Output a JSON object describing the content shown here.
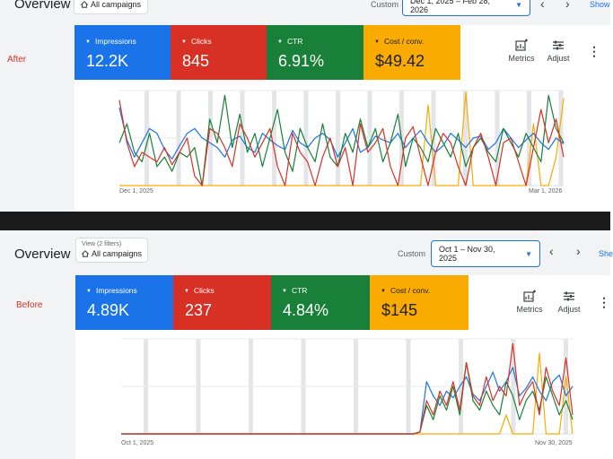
{
  "colors": {
    "impressions": "#1a73e8",
    "clicks": "#d93025",
    "ctr": "#188038",
    "cost": "#f9ab00",
    "weekend_band": "#dadce0",
    "accent": "#1a73e8",
    "label_red": "#d93025"
  },
  "after": {
    "side_label": "After",
    "title": "Overview",
    "filter_sub": "",
    "filter_chip": "All campaigns",
    "custom_label": "Custom",
    "date_range": "Dec 1, 2025 – Feb 28, 2026",
    "show_link": "Show",
    "metrics": [
      {
        "name": "Impressions",
        "value": "12.2K"
      },
      {
        "name": "Clicks",
        "value": "845"
      },
      {
        "name": "CTR",
        "value": "6.91%"
      },
      {
        "name": "Cost / conv.",
        "value": "$49.42"
      }
    ],
    "tools": {
      "metrics": "Metrics",
      "adjust": "Adjust"
    },
    "x_start": "Dec 1, 2025",
    "x_end": "Mar 1, 2026"
  },
  "before": {
    "side_label": "Before",
    "title": "Overview",
    "filter_sub": "View (2 filters)",
    "filter_chip": "All campaigns",
    "custom_label": "Custom",
    "date_range": "Oct 1 – Nov 30, 2025",
    "show_link": "She",
    "metrics": [
      {
        "name": "Impressions",
        "value": "4.89K"
      },
      {
        "name": "Clicks",
        "value": "237"
      },
      {
        "name": "CTR",
        "value": "4.84%"
      },
      {
        "name": "Cost / conv.",
        "value": "$145"
      }
    ],
    "tools": {
      "metrics": "Metrics",
      "adjust": "Adjust"
    },
    "x_start": "Oct 1, 2025",
    "x_end": "Nov 30, 2025"
  },
  "chart_data": [
    {
      "type": "line",
      "period": "after",
      "x_range": [
        "Dec 1, 2025",
        "Mar 1, 2026"
      ],
      "ylim": [
        0,
        100
      ],
      "grid": true,
      "series": [
        {
          "name": "Impressions",
          "values": [
            82,
            48,
            30,
            45,
            60,
            55,
            38,
            28,
            42,
            55,
            60,
            50,
            45,
            40,
            30,
            48,
            52,
            40,
            35,
            55,
            48,
            42,
            38,
            58,
            45,
            40,
            50,
            55,
            48,
            30,
            45,
            60,
            35,
            40,
            52,
            48,
            45,
            55,
            40,
            50,
            58,
            45,
            35,
            42,
            55,
            48,
            40,
            50,
            52,
            38,
            45,
            60,
            50,
            40,
            48,
            55,
            45,
            38,
            50,
            44
          ]
        },
        {
          "name": "Clicks",
          "values": [
            90,
            45,
            20,
            35,
            30,
            25,
            40,
            22,
            35,
            50,
            10,
            0,
            60,
            55,
            40,
            20,
            65,
            50,
            30,
            45,
            60,
            20,
            0,
            55,
            35,
            25,
            0,
            30,
            50,
            20,
            40,
            0,
            65,
            35,
            45,
            60,
            20,
            0,
            50,
            62,
            30,
            0,
            35,
            55,
            45,
            20,
            0,
            40,
            55,
            30,
            0,
            45,
            50,
            25,
            0,
            40,
            80,
            45,
            70,
            30
          ]
        },
        {
          "name": "CTR",
          "values": [
            45,
            65,
            35,
            25,
            55,
            20,
            30,
            15,
            35,
            30,
            40,
            0,
            70,
            45,
            95,
            40,
            75,
            35,
            55,
            20,
            50,
            80,
            35,
            15,
            60,
            40,
            25,
            65,
            30,
            20,
            55,
            35,
            70,
            40,
            60,
            25,
            45,
            75,
            20,
            50,
            40,
            25,
            60,
            45,
            30,
            55,
            20,
            40,
            50,
            35,
            25,
            60,
            45,
            30,
            55,
            40,
            25,
            95,
            60,
            45
          ]
        },
        {
          "name": "Cost / conv.",
          "values": [
            0,
            0,
            0,
            0,
            0,
            0,
            0,
            0,
            0,
            0,
            0,
            0,
            0,
            0,
            0,
            0,
            0,
            0,
            0,
            0,
            0,
            0,
            0,
            0,
            0,
            0,
            0,
            0,
            0,
            0,
            0,
            0,
            0,
            0,
            0,
            0,
            0,
            0,
            0,
            0,
            0,
            85,
            0,
            0,
            0,
            0,
            98,
            0,
            0,
            0,
            0,
            0,
            0,
            0,
            0,
            65,
            0,
            0,
            30,
            92
          ]
        }
      ]
    },
    {
      "type": "line",
      "period": "before",
      "x_range": [
        "Oct 1, 2025",
        "Nov 30, 2025"
      ],
      "ylim": [
        0,
        100
      ],
      "grid": true,
      "series": [
        {
          "name": "Impressions",
          "values": [
            0,
            0,
            0,
            0,
            0,
            0,
            0,
            0,
            0,
            0,
            0,
            0,
            0,
            0,
            0,
            0,
            0,
            0,
            0,
            0,
            0,
            0,
            0,
            0,
            0,
            0,
            0,
            0,
            0,
            0,
            0,
            0,
            0,
            0,
            0,
            0,
            0,
            0,
            0,
            0,
            0,
            0,
            0,
            0,
            0,
            2,
            55,
            40,
            30,
            45,
            38,
            50,
            60,
            42,
            35,
            50,
            65,
            45,
            55,
            70,
            40,
            48,
            60,
            45,
            35,
            55,
            62,
            40,
            50
          ]
        },
        {
          "name": "Clicks",
          "values": [
            0,
            0,
            0,
            0,
            0,
            0,
            0,
            0,
            0,
            0,
            0,
            0,
            0,
            0,
            0,
            0,
            0,
            0,
            0,
            0,
            0,
            0,
            0,
            0,
            0,
            0,
            0,
            0,
            0,
            0,
            0,
            0,
            0,
            0,
            0,
            0,
            0,
            0,
            0,
            0,
            0,
            0,
            0,
            0,
            0,
            2,
            35,
            20,
            45,
            30,
            55,
            25,
            75,
            40,
            30,
            60,
            35,
            50,
            40,
            95,
            30,
            45,
            55,
            20,
            70,
            45,
            30,
            80,
            20
          ]
        },
        {
          "name": "CTR",
          "values": [
            0,
            0,
            0,
            0,
            0,
            0,
            0,
            0,
            0,
            0,
            0,
            0,
            0,
            0,
            0,
            0,
            0,
            0,
            0,
            0,
            0,
            0,
            0,
            0,
            0,
            0,
            0,
            0,
            0,
            0,
            0,
            0,
            0,
            0,
            0,
            0,
            0,
            0,
            0,
            0,
            0,
            0,
            0,
            0,
            0,
            2,
            30,
            15,
            40,
            25,
            50,
            20,
            75,
            35,
            25,
            45,
            30,
            20,
            55,
            40,
            15,
            35,
            45,
            25,
            60,
            40,
            20,
            35,
            15
          ]
        },
        {
          "name": "Cost / conv.",
          "values": [
            0,
            0,
            0,
            0,
            0,
            0,
            0,
            0,
            0,
            0,
            0,
            0,
            0,
            0,
            0,
            0,
            0,
            0,
            0,
            0,
            0,
            0,
            0,
            0,
            0,
            0,
            0,
            0,
            0,
            0,
            0,
            0,
            0,
            0,
            0,
            0,
            0,
            0,
            0,
            0,
            0,
            0,
            0,
            0,
            0,
            0,
            0,
            0,
            0,
            0,
            0,
            0,
            0,
            0,
            0,
            0,
            0,
            0,
            20,
            0,
            0,
            0,
            0,
            85,
            0,
            0,
            0,
            60,
            0
          ]
        }
      ]
    }
  ]
}
